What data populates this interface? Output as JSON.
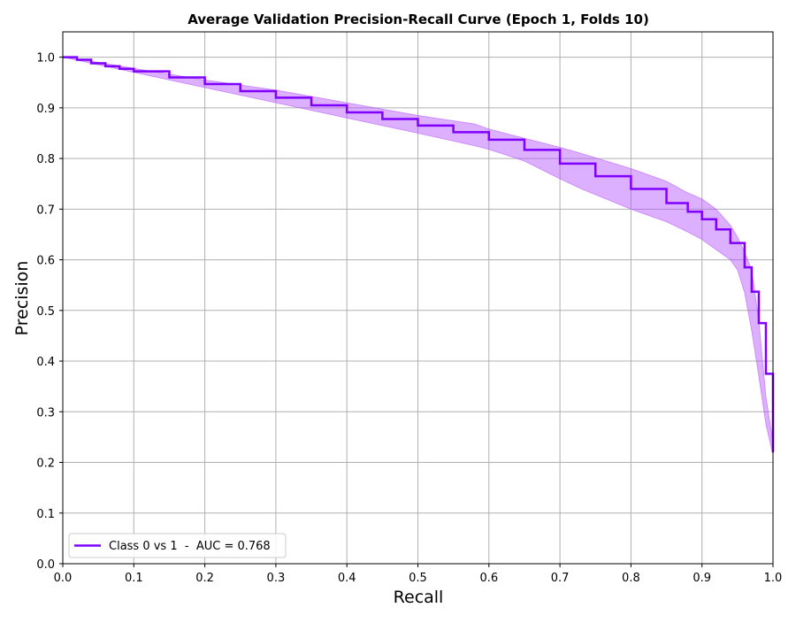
{
  "chart_data": {
    "type": "line",
    "title": "Average Validation Precision-Recall Curve (Epoch 1, Folds 10)",
    "xlabel": "Recall",
    "ylabel": "Precision",
    "xlim": [
      0.0,
      1.0
    ],
    "ylim": [
      0.0,
      1.05
    ],
    "grid": true,
    "legend_position": "lower-left",
    "x_ticks": [
      0.0,
      0.1,
      0.2,
      0.3,
      0.4,
      0.5,
      0.6,
      0.7,
      0.8,
      0.9,
      1.0
    ],
    "y_ticks": [
      0.0,
      0.1,
      0.2,
      0.3,
      0.4,
      0.5,
      0.6,
      0.7,
      0.8,
      0.9,
      1.0
    ],
    "x_tick_labels": [
      "0.0",
      "0.1",
      "0.2",
      "0.3",
      "0.4",
      "0.5",
      "0.6",
      "0.7",
      "0.8",
      "0.9",
      "1.0"
    ],
    "y_tick_labels": [
      "0.0",
      "0.1",
      "0.2",
      "0.3",
      "0.4",
      "0.5",
      "0.6",
      "0.7",
      "0.8",
      "0.9",
      "1.0"
    ],
    "series": [
      {
        "name": "Class 0 vs 1  -  AUC = 0.768",
        "color": "#7f00ff",
        "step": true,
        "x": [
          0.0,
          0.02,
          0.04,
          0.06,
          0.08,
          0.1,
          0.15,
          0.2,
          0.25,
          0.3,
          0.35,
          0.4,
          0.45,
          0.5,
          0.55,
          0.6,
          0.65,
          0.7,
          0.75,
          0.8,
          0.85,
          0.88,
          0.9,
          0.92,
          0.94,
          0.96,
          0.97,
          0.98,
          0.99,
          1.0
        ],
        "y": [
          1.0,
          0.995,
          0.988,
          0.982,
          0.977,
          0.972,
          0.96,
          0.947,
          0.933,
          0.92,
          0.905,
          0.891,
          0.878,
          0.865,
          0.852,
          0.837,
          0.817,
          0.79,
          0.765,
          0.74,
          0.712,
          0.695,
          0.68,
          0.66,
          0.633,
          0.585,
          0.537,
          0.475,
          0.375,
          0.22
        ]
      }
    ],
    "band": {
      "color": "#b44dff",
      "opacity": 0.45,
      "x": [
        0.0,
        0.05,
        0.1,
        0.2,
        0.3,
        0.4,
        0.5,
        0.58,
        0.6,
        0.65,
        0.7,
        0.73,
        0.8,
        0.85,
        0.88,
        0.9,
        0.92,
        0.94,
        0.95,
        0.96,
        0.97,
        0.98,
        0.99,
        1.0
      ],
      "upper": [
        1.0,
        0.99,
        0.978,
        0.955,
        0.935,
        0.91,
        0.885,
        0.868,
        0.858,
        0.84,
        0.822,
        0.81,
        0.78,
        0.755,
        0.732,
        0.72,
        0.7,
        0.668,
        0.645,
        0.615,
        0.58,
        0.48,
        0.33,
        0.24
      ],
      "lower": [
        1.0,
        0.985,
        0.97,
        0.94,
        0.91,
        0.88,
        0.85,
        0.825,
        0.818,
        0.795,
        0.76,
        0.74,
        0.7,
        0.675,
        0.655,
        0.64,
        0.62,
        0.6,
        0.58,
        0.535,
        0.46,
        0.37,
        0.275,
        0.215
      ]
    }
  }
}
